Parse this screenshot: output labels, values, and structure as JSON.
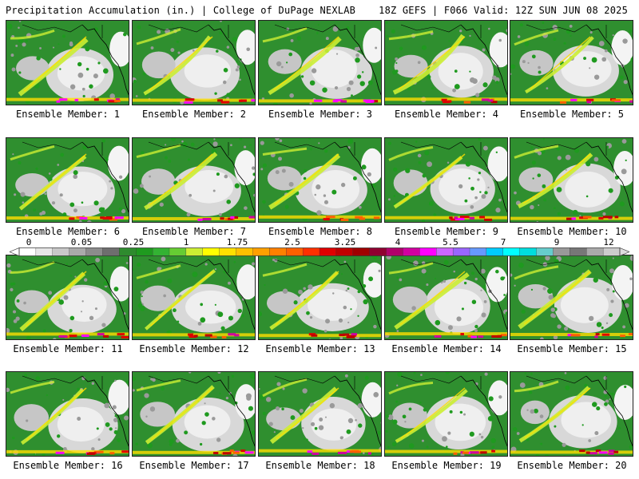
{
  "header": {
    "left_title": "Precipitation Accumulation (in.) | College of DuPage NEXLAB",
    "right_title": "18Z GEFS | F066 Valid: 12Z SUN JUN 08 2025"
  },
  "panels": [
    {
      "label": "Ensemble Member: 1"
    },
    {
      "label": "Ensemble Member: 2"
    },
    {
      "label": "Ensemble Member: 3"
    },
    {
      "label": "Ensemble Member: 4"
    },
    {
      "label": "Ensemble Member: 5"
    },
    {
      "label": "Ensemble Member: 6"
    },
    {
      "label": "Ensemble Member: 7"
    },
    {
      "label": "Ensemble Member: 8"
    },
    {
      "label": "Ensemble Member: 9"
    },
    {
      "label": "Ensemble Member: 10"
    },
    {
      "label": "Ensemble Member: 11"
    },
    {
      "label": "Ensemble Member: 12"
    },
    {
      "label": "Ensemble Member: 13"
    },
    {
      "label": "Ensemble Member: 14"
    },
    {
      "label": "Ensemble Member: 15"
    },
    {
      "label": "Ensemble Member: 16"
    },
    {
      "label": "Ensemble Member: 17"
    },
    {
      "label": "Ensemble Member: 18"
    },
    {
      "label": "Ensemble Member: 19"
    },
    {
      "label": "Ensemble Member: 20"
    }
  ],
  "colorbar": {
    "tick_labels": [
      "0",
      "0.05",
      "0.25",
      "1",
      "1.75",
      "2.5",
      "3.25",
      "4",
      "5.5",
      "7",
      "9",
      "12"
    ],
    "colors": [
      "#ffffff",
      "#e6e6e6",
      "#c8c8c8",
      "#aaaaaa",
      "#8c8c8c",
      "#6e6e6e",
      "#2e8b2e",
      "#1f9a1f",
      "#33b233",
      "#66cc33",
      "#ccee33",
      "#ffff00",
      "#ffe000",
      "#ffc000",
      "#ffa000",
      "#ff8000",
      "#ff6000",
      "#ff3000",
      "#e00000",
      "#c00000",
      "#a00000",
      "#900030",
      "#b0006a",
      "#d000a0",
      "#ff00ff",
      "#cc66ff",
      "#9966ff",
      "#6699ff",
      "#00ccff",
      "#00ffff",
      "#00dddd",
      "#66cccc",
      "#999999",
      "#777777",
      "#aaaaaa",
      "#cccccc"
    ]
  }
}
